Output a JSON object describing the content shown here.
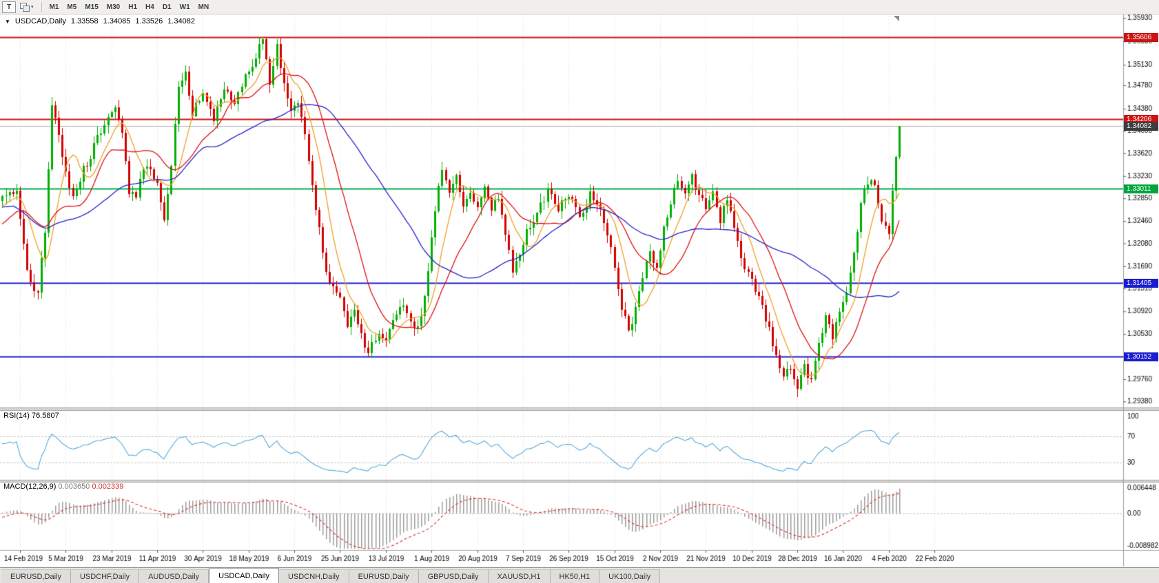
{
  "icons": {
    "menu_triangle": "▼",
    "caret_down": "▾"
  },
  "toolbar": {
    "template_button_label": "T",
    "timeframes": [
      "M1",
      "M5",
      "M15",
      "M30",
      "H1",
      "H4",
      "D1",
      "W1",
      "MN"
    ]
  },
  "chart": {
    "symbol_period": "USDCAD,Daily",
    "quote": {
      "open": "1.33558",
      "high": "1.34085",
      "low": "1.33526",
      "close": "1.34082"
    }
  },
  "price_axis": {
    "labels": [
      "1.35930",
      "1.35530",
      "1.35130",
      "1.34780",
      "1.34380",
      "1.34000",
      "1.33620",
      "1.33230",
      "1.32850",
      "1.32460",
      "1.32080",
      "1.31690",
      "1.31310",
      "1.30920",
      "1.30530",
      "1.30150",
      "1.29760",
      "1.29380"
    ]
  },
  "levels": [
    {
      "label": "1.35606",
      "price": 1.35606,
      "line_color": "#cc1414",
      "badge_color": "#cc1414",
      "kind": "resistance"
    },
    {
      "label": "1.34206",
      "price": 1.34206,
      "line_color": "#cc1414",
      "badge_color": "#cc1414",
      "kind": "resistance"
    },
    {
      "label": "1.34082",
      "price": 1.34082,
      "line_color": "#b4b4b4",
      "badge_color": "#3d3d3d",
      "kind": "current-price"
    },
    {
      "label": "1.33011",
      "price": 1.33011,
      "line_color": "#00b050",
      "badge_color": "#00a43c",
      "kind": "support"
    },
    {
      "label": "1.31405",
      "price": 1.31405,
      "line_color": "#1c1cd0",
      "badge_color": "#1c1cd0",
      "kind": "support"
    },
    {
      "label": "1.30152",
      "price": 1.30152,
      "line_color": "#1c1cd0",
      "badge_color": "#1c1cd0",
      "kind": "support"
    }
  ],
  "indicators": {
    "rsi": {
      "name": "RSI(14)",
      "value": "76.5807",
      "axis": [
        "100",
        "70",
        "30"
      ],
      "dashed_levels": [
        70,
        30
      ],
      "line_color": "#56a8d8"
    },
    "macd": {
      "name": "MACD(12,26,9)",
      "value_macd": "0.003650",
      "value_signal": "0.002339",
      "axis": [
        "0.006448",
        "0.00",
        "-0.008982"
      ],
      "histogram_color": "#9b9b9b",
      "signal_color": "#e03030"
    }
  },
  "date_axis": {
    "ticks": [
      "14 Feb 2019",
      "5 Mar 2019",
      "23 Mar 2019",
      "11 Apr 2019",
      "30 Apr 2019",
      "18 May 2019",
      "6 Jun 2019",
      "25 Jun 2019",
      "13 Jul 2019",
      "1 Aug 2019",
      "20 Aug 2019",
      "7 Sep 2019",
      "26 Sep 2019",
      "15 Oct 2019",
      "2 Nov 2019",
      "21 Nov 2019",
      "10 Dec 2019",
      "28 Dec 2019",
      "16 Jan 2020",
      "4 Feb 2020",
      "22 Feb 2020"
    ]
  },
  "tabs": [
    {
      "label": "EURUSD,Daily",
      "active": false
    },
    {
      "label": "USDCHF,Daily",
      "active": false
    },
    {
      "label": "AUDUSD,Daily",
      "active": false
    },
    {
      "label": "USDCAD,Daily",
      "active": true
    },
    {
      "label": "USDCNH,Daily",
      "active": false
    },
    {
      "label": "EURUSD,Daily",
      "active": false
    },
    {
      "label": "GBPUSD,Daily",
      "active": false
    },
    {
      "label": "XAUUSD,H1",
      "active": false
    },
    {
      "label": "HK50,H1",
      "active": false
    },
    {
      "label": "UK100,Daily",
      "active": false
    }
  ],
  "chart_data": {
    "type": "candlestick",
    "symbol": "USDCAD",
    "timeframe": "Daily",
    "price_range": {
      "max": 1.3599,
      "min": 1.29278
    },
    "candle_up_color": "#00b000",
    "candle_down_color": "#d40000",
    "moving_averages": [
      {
        "period": 8,
        "color": "#f0a028"
      },
      {
        "period": 18,
        "color": "#e01010"
      },
      {
        "period": 45,
        "color": "#2424cc"
      }
    ],
    "bars_end": 251,
    "warmup_waypoints": [
      [
        -45,
        1.343
      ],
      [
        -38,
        1.334
      ],
      [
        -30,
        1.324
      ],
      [
        -22,
        1.3185
      ],
      [
        -15,
        1.3225
      ],
      [
        -8,
        1.327
      ],
      [
        -5,
        1.3285
      ]
    ],
    "close_waypoints": [
      [
        0,
        1.329
      ],
      [
        2,
        1.32
      ],
      [
        4,
        1.3135
      ],
      [
        6,
        1.312
      ],
      [
        8,
        1.323
      ],
      [
        10,
        1.345
      ],
      [
        12,
        1.339
      ],
      [
        14,
        1.333
      ],
      [
        16,
        1.329
      ],
      [
        18,
        1.332
      ],
      [
        21,
        1.336
      ],
      [
        24,
        1.34
      ],
      [
        26,
        1.343
      ],
      [
        28,
        1.344
      ],
      [
        30,
        1.339
      ],
      [
        32,
        1.33
      ],
      [
        34,
        1.328
      ],
      [
        36,
        1.334
      ],
      [
        38,
        1.333
      ],
      [
        40,
        1.331
      ],
      [
        42,
        1.325
      ],
      [
        44,
        1.334
      ],
      [
        46,
        1.348
      ],
      [
        48,
        1.35
      ],
      [
        50,
        1.343
      ],
      [
        53,
        1.3465
      ],
      [
        56,
        1.342
      ],
      [
        59,
        1.347
      ],
      [
        62,
        1.344
      ],
      [
        64,
        1.348
      ],
      [
        66,
        1.35
      ],
      [
        68,
        1.353
      ],
      [
        70,
        1.3555
      ],
      [
        72,
        1.348
      ],
      [
        74,
        1.3545
      ],
      [
        76,
        1.348
      ],
      [
        78,
        1.343
      ],
      [
        80,
        1.3445
      ],
      [
        82,
        1.339
      ],
      [
        84,
        1.331
      ],
      [
        86,
        1.323
      ],
      [
        88,
        1.316
      ],
      [
        90,
        1.313
      ],
      [
        92,
        1.311
      ],
      [
        94,
        1.307
      ],
      [
        96,
        1.3095
      ],
      [
        98,
        1.305
      ],
      [
        100,
        1.3025
      ],
      [
        103,
        1.306
      ],
      [
        105,
        1.3045
      ],
      [
        107,
        1.3075
      ],
      [
        110,
        1.3105
      ],
      [
        113,
        1.306
      ],
      [
        115,
        1.3085
      ],
      [
        117,
        1.316
      ],
      [
        119,
        1.327
      ],
      [
        121,
        1.3335
      ],
      [
        123,
        1.329
      ],
      [
        125,
        1.332
      ],
      [
        127,
        1.327
      ],
      [
        129,
        1.3295
      ],
      [
        131,
        1.327
      ],
      [
        133,
        1.3305
      ],
      [
        135,
        1.326
      ],
      [
        137,
        1.329
      ],
      [
        139,
        1.323
      ],
      [
        141,
        1.3155
      ],
      [
        143,
        1.319
      ],
      [
        145,
        1.3225
      ],
      [
        148,
        1.326
      ],
      [
        151,
        1.33
      ],
      [
        154,
        1.327
      ],
      [
        157,
        1.329
      ],
      [
        160,
        1.325
      ],
      [
        163,
        1.329
      ],
      [
        166,
        1.327
      ],
      [
        168,
        1.323
      ],
      [
        170,
        1.317
      ],
      [
        172,
        1.31
      ],
      [
        174,
        1.306
      ],
      [
        176,
        1.3095
      ],
      [
        178,
        1.315
      ],
      [
        180,
        1.319
      ],
      [
        182,
        1.317
      ],
      [
        184,
        1.323
      ],
      [
        186,
        1.328
      ],
      [
        188,
        1.332
      ],
      [
        190,
        1.33
      ],
      [
        192,
        1.332
      ],
      [
        194,
        1.329
      ],
      [
        196,
        1.327
      ],
      [
        198,
        1.33
      ],
      [
        200,
        1.325
      ],
      [
        202,
        1.328
      ],
      [
        204,
        1.323
      ],
      [
        206,
        1.318
      ],
      [
        208,
        1.316
      ],
      [
        210,
        1.313
      ],
      [
        212,
        1.31
      ],
      [
        214,
        1.306
      ],
      [
        216,
        1.301
      ],
      [
        218,
        1.298
      ],
      [
        220,
        1.3
      ],
      [
        222,
        1.296
      ],
      [
        224,
        1.2995
      ],
      [
        226,
        1.2975
      ],
      [
        228,
        1.3045
      ],
      [
        230,
        1.308
      ],
      [
        232,
        1.305
      ],
      [
        234,
        1.309
      ],
      [
        236,
        1.312
      ],
      [
        238,
        1.319
      ],
      [
        240,
        1.327
      ],
      [
        242,
        1.3315
      ],
      [
        244,
        1.33
      ],
      [
        246,
        1.325
      ],
      [
        248,
        1.323
      ],
      [
        249,
        1.33
      ],
      [
        250,
        1.3356
      ],
      [
        251,
        1.34082
      ]
    ],
    "last_candle": {
      "open": 1.33558,
      "high": 1.34085,
      "low": 1.33526,
      "close": 1.34082
    }
  }
}
